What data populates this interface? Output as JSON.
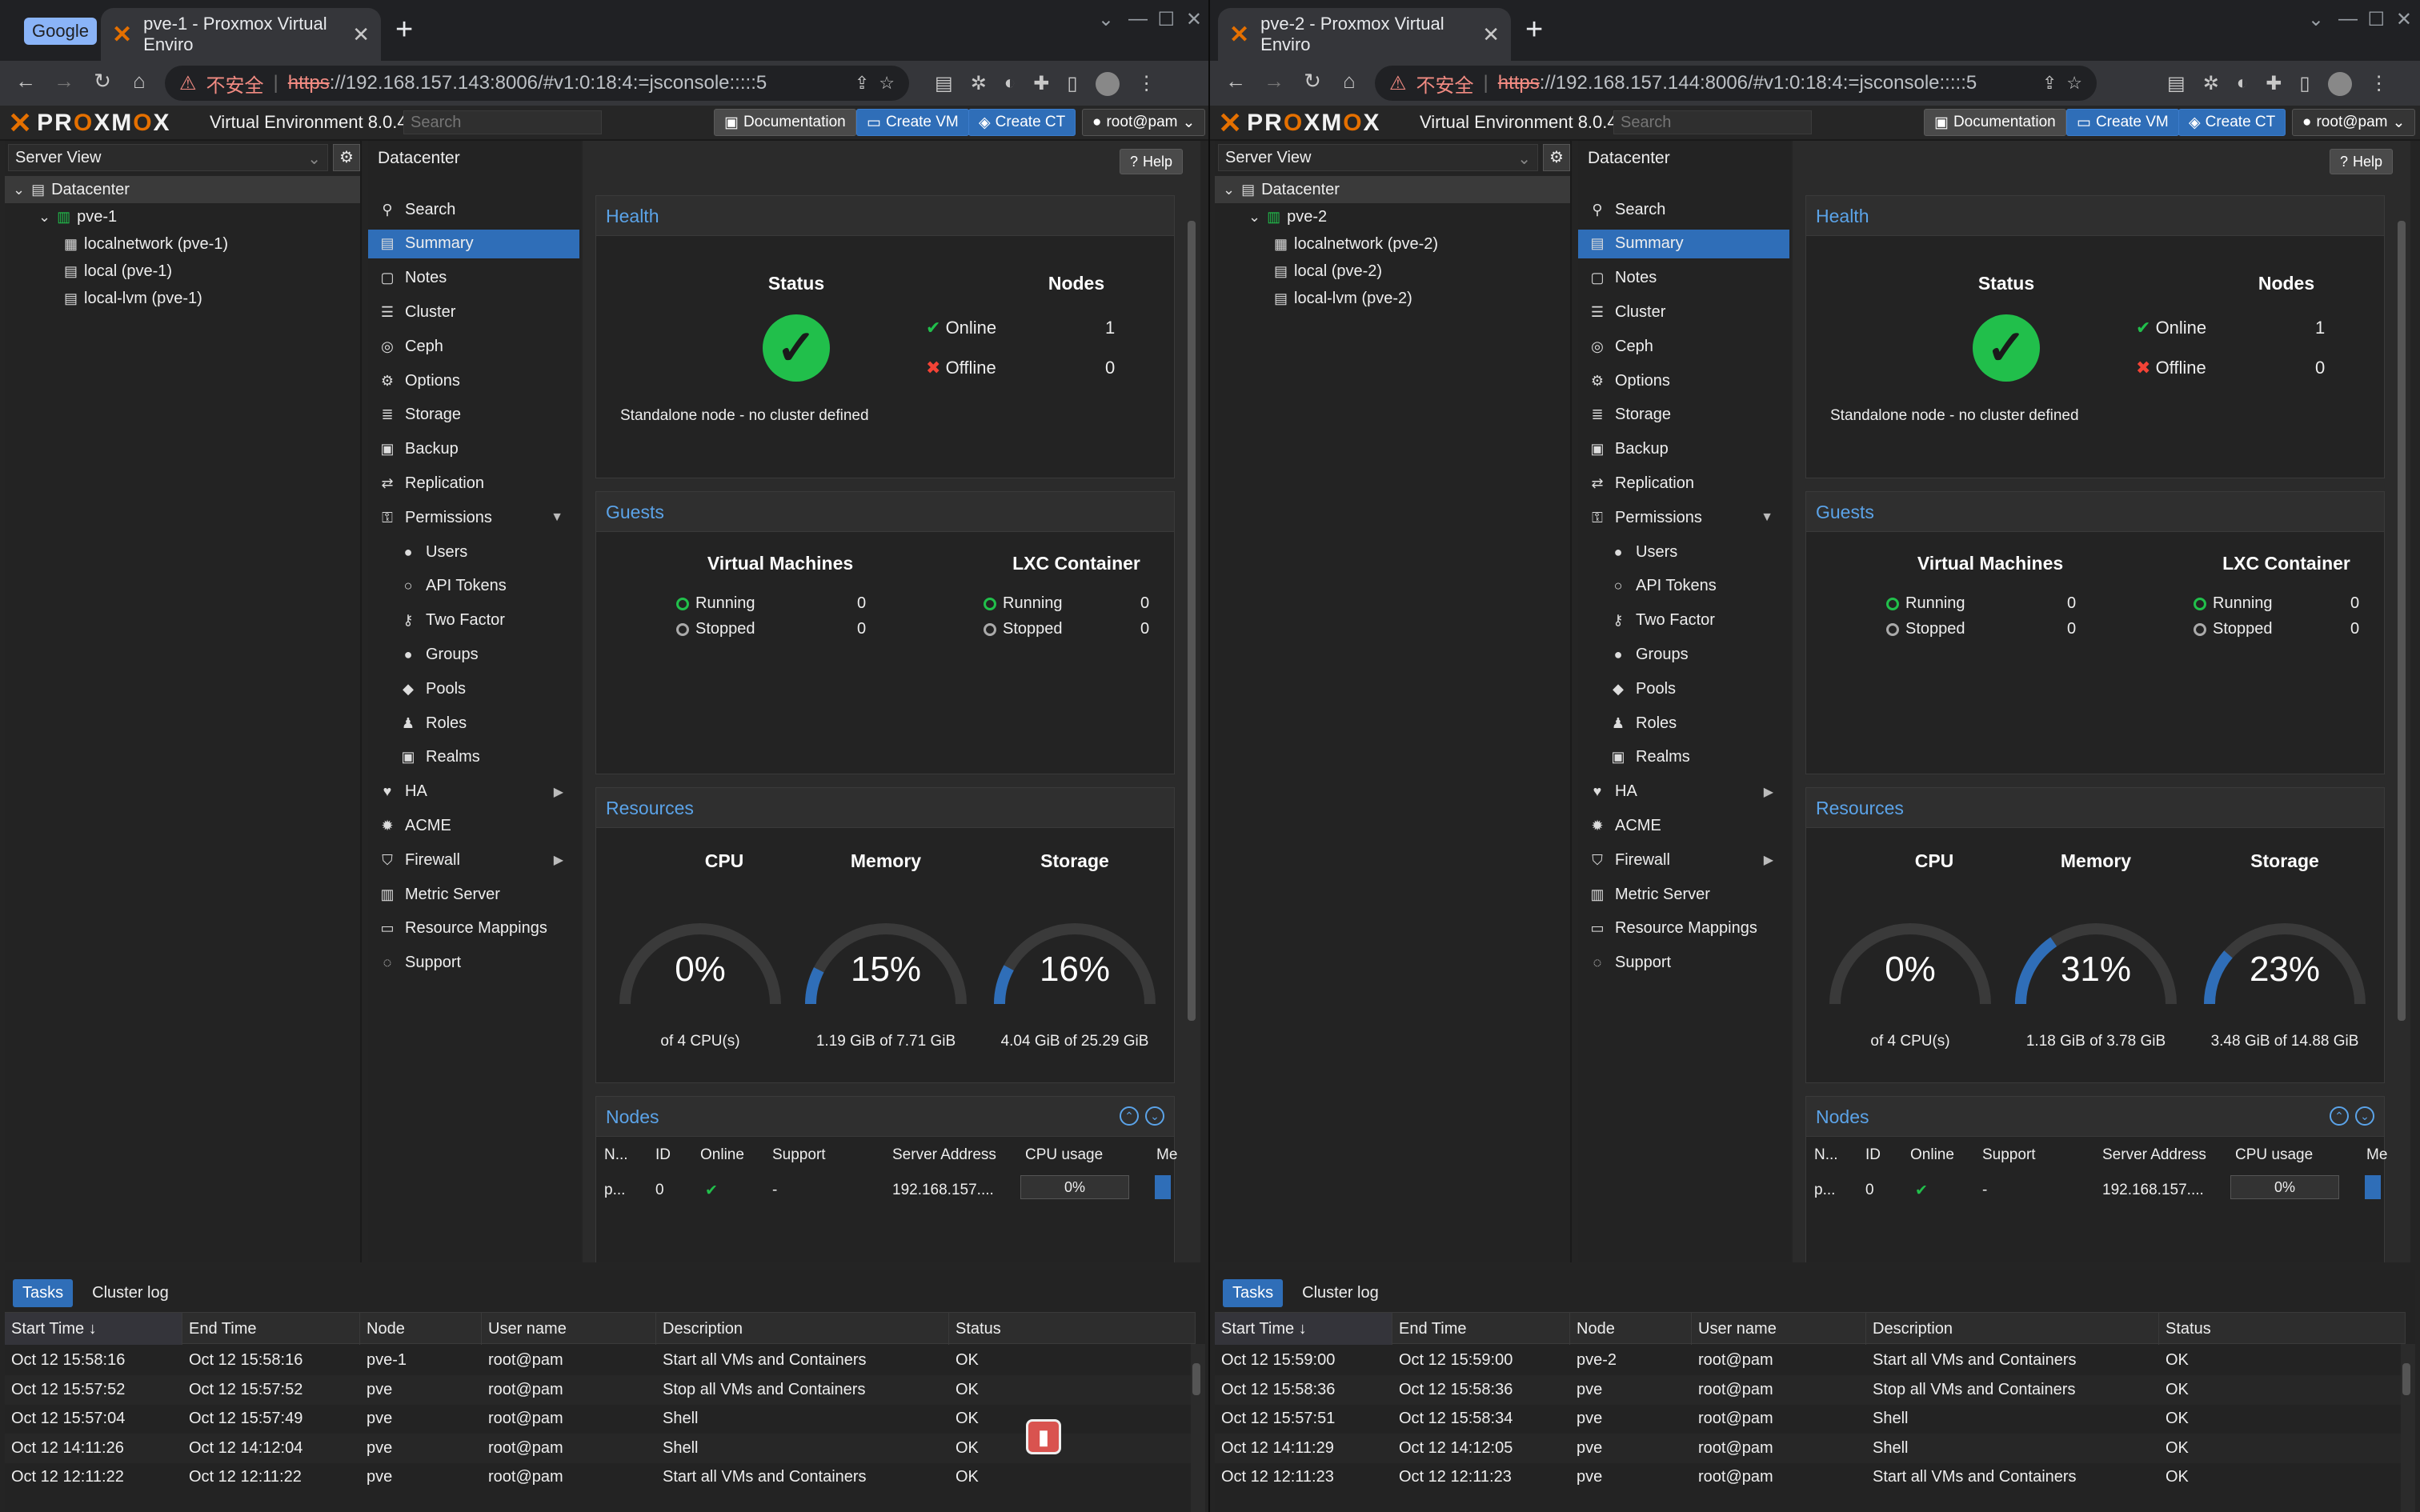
{
  "windows": [
    {
      "id": "w1",
      "tab_group": "Google",
      "tab_title": "pve-1 - Proxmox Virtual Enviro",
      "url_insecure": "不安全",
      "url_scheme": "https",
      "url_rest": "://192.168.157.143:8006/#v1:0:18:4:=jsconsole:::::5",
      "version": "Virtual Environment 8.0.4",
      "search_placeholder": "Search",
      "btn_docs": "Documentation",
      "btn_create_vm": "Create VM",
      "btn_create_ct": "Create CT",
      "btn_user": "root@pam",
      "view": "Server View",
      "tree": [
        {
          "label": "Datacenter",
          "indent": 0,
          "icon": "datacenter-icon",
          "sel": true
        },
        {
          "label": "pve-1",
          "indent": 1,
          "icon": "node-icon"
        },
        {
          "label": "localnetwork (pve-1)",
          "indent": 2,
          "icon": "grid-icon"
        },
        {
          "label": "local (pve-1)",
          "indent": 2,
          "icon": "storage-icon"
        },
        {
          "label": "local-lvm (pve-1)",
          "indent": 2,
          "icon": "storage-icon"
        }
      ],
      "health": {
        "status": "Status",
        "nodes": "Nodes",
        "online": "Online",
        "online_n": "1",
        "offline": "Offline",
        "offline_n": "0",
        "standalone": "Standalone node - no cluster defined"
      },
      "guests": {
        "vm": "Virtual Machines",
        "lxc": "LXC Container",
        "running": "Running",
        "stopped": "Stopped",
        "vm_running": "0",
        "vm_stopped": "0",
        "ct_running": "0",
        "ct_stopped": "0"
      },
      "resources": {
        "cpu": {
          "label": "CPU",
          "pct": "0%",
          "value": 0,
          "sub": "of 4 CPU(s)"
        },
        "mem": {
          "label": "Memory",
          "pct": "15%",
          "value": 15,
          "sub": "1.19 GiB of 7.71 GiB"
        },
        "sto": {
          "label": "Storage",
          "pct": "16%",
          "value": 16,
          "sub": "4.04 GiB of 25.29 GiB"
        }
      },
      "nodes_row": {
        "name": "p...",
        "id": "0",
        "support": "-",
        "addr": "192.168.157....",
        "cpu": "0%"
      },
      "tasks": [
        {
          "start": "Oct 12 15:58:16",
          "end": "Oct 12 15:58:16",
          "node": "pve-1",
          "user": "root@pam",
          "desc": "Start all VMs and Containers",
          "status": "OK"
        },
        {
          "start": "Oct 12 15:57:52",
          "end": "Oct 12 15:57:52",
          "node": "pve",
          "user": "root@pam",
          "desc": "Stop all VMs and Containers",
          "status": "OK"
        },
        {
          "start": "Oct 12 15:57:04",
          "end": "Oct 12 15:57:49",
          "node": "pve",
          "user": "root@pam",
          "desc": "Shell",
          "status": "OK"
        },
        {
          "start": "Oct 12 14:11:26",
          "end": "Oct 12 14:12:04",
          "node": "pve",
          "user": "root@pam",
          "desc": "Shell",
          "status": "OK"
        },
        {
          "start": "Oct 12 12:11:22",
          "end": "Oct 12 12:11:22",
          "node": "pve",
          "user": "root@pam",
          "desc": "Start all VMs and Containers",
          "status": "OK"
        }
      ]
    },
    {
      "id": "w2",
      "tab_group": "",
      "tab_title": "pve-2 - Proxmox Virtual Enviro",
      "url_insecure": "不安全",
      "url_scheme": "https",
      "url_rest": "://192.168.157.144:8006/#v1:0:18:4:=jsconsole:::::5",
      "version": "Virtual Environment 8.0.4",
      "search_placeholder": "Search",
      "btn_docs": "Documentation",
      "btn_create_vm": "Create VM",
      "btn_create_ct": "Create CT",
      "btn_user": "root@pam",
      "view": "Server View",
      "tree": [
        {
          "label": "Datacenter",
          "indent": 0,
          "icon": "datacenter-icon",
          "sel": true
        },
        {
          "label": "pve-2",
          "indent": 1,
          "icon": "node-icon"
        },
        {
          "label": "localnetwork (pve-2)",
          "indent": 2,
          "icon": "grid-icon"
        },
        {
          "label": "local (pve-2)",
          "indent": 2,
          "icon": "storage-icon"
        },
        {
          "label": "local-lvm (pve-2)",
          "indent": 2,
          "icon": "storage-icon"
        }
      ],
      "health": {
        "status": "Status",
        "nodes": "Nodes",
        "online": "Online",
        "online_n": "1",
        "offline": "Offline",
        "offline_n": "0",
        "standalone": "Standalone node - no cluster defined"
      },
      "guests": {
        "vm": "Virtual Machines",
        "lxc": "LXC Container",
        "running": "Running",
        "stopped": "Stopped",
        "vm_running": "0",
        "vm_stopped": "0",
        "ct_running": "0",
        "ct_stopped": "0"
      },
      "resources": {
        "cpu": {
          "label": "CPU",
          "pct": "0%",
          "value": 0,
          "sub": "of 4 CPU(s)"
        },
        "mem": {
          "label": "Memory",
          "pct": "31%",
          "value": 31,
          "sub": "1.18 GiB of 3.78 GiB"
        },
        "sto": {
          "label": "Storage",
          "pct": "23%",
          "value": 23,
          "sub": "3.48 GiB of 14.88 GiB"
        }
      },
      "nodes_row": {
        "name": "p...",
        "id": "0",
        "support": "-",
        "addr": "192.168.157....",
        "cpu": "0%"
      },
      "tasks": [
        {
          "start": "Oct 12 15:59:00",
          "end": "Oct 12 15:59:00",
          "node": "pve-2",
          "user": "root@pam",
          "desc": "Start all VMs and Containers",
          "status": "OK"
        },
        {
          "start": "Oct 12 15:58:36",
          "end": "Oct 12 15:58:36",
          "node": "pve",
          "user": "root@pam",
          "desc": "Stop all VMs and Containers",
          "status": "OK"
        },
        {
          "start": "Oct 12 15:57:51",
          "end": "Oct 12 15:58:34",
          "node": "pve",
          "user": "root@pam",
          "desc": "Shell",
          "status": "OK"
        },
        {
          "start": "Oct 12 14:11:29",
          "end": "Oct 12 14:12:05",
          "node": "pve",
          "user": "root@pam",
          "desc": "Shell",
          "status": "OK"
        },
        {
          "start": "Oct 12 12:11:23",
          "end": "Oct 12 12:11:23",
          "node": "pve",
          "user": "root@pam",
          "desc": "Start all VMs and Containers",
          "status": "OK"
        }
      ]
    }
  ],
  "menu": [
    {
      "label": "Search",
      "icon": "search-icon",
      "glyph": "⚲"
    },
    {
      "label": "Summary",
      "icon": "book-icon",
      "glyph": "▤",
      "active": true
    },
    {
      "label": "Notes",
      "icon": "notes-icon",
      "glyph": "▢"
    },
    {
      "label": "Cluster",
      "icon": "server-icon",
      "glyph": "☰"
    },
    {
      "label": "Ceph",
      "icon": "ceph-icon",
      "glyph": "◎"
    },
    {
      "label": "Options",
      "icon": "gear-icon",
      "glyph": "⚙"
    },
    {
      "label": "Storage",
      "icon": "database-icon",
      "glyph": "≣"
    },
    {
      "label": "Backup",
      "icon": "floppy-icon",
      "glyph": "▣"
    },
    {
      "label": "Replication",
      "icon": "retweet-icon",
      "glyph": "⇄"
    },
    {
      "label": "Permissions",
      "icon": "unlock-icon",
      "glyph": "⚿",
      "expand": "down"
    },
    {
      "label": "Users",
      "icon": "user-icon",
      "glyph": "●",
      "sub": true
    },
    {
      "label": "API Tokens",
      "icon": "user-outline-icon",
      "glyph": "○",
      "sub": true
    },
    {
      "label": "Two Factor",
      "icon": "key-icon",
      "glyph": "⚷",
      "sub": true
    },
    {
      "label": "Groups",
      "icon": "users-icon",
      "glyph": "●",
      "sub": true
    },
    {
      "label": "Pools",
      "icon": "tags-icon",
      "glyph": "◆",
      "sub": true
    },
    {
      "label": "Roles",
      "icon": "male-icon",
      "glyph": "♟",
      "sub": true
    },
    {
      "label": "Realms",
      "icon": "address-book-icon",
      "glyph": "▣",
      "sub": true
    },
    {
      "label": "HA",
      "icon": "heartbeat-icon",
      "glyph": "♥",
      "expand": "right"
    },
    {
      "label": "ACME",
      "icon": "certificate-icon",
      "glyph": "✹"
    },
    {
      "label": "Firewall",
      "icon": "shield-icon",
      "glyph": "⛉",
      "expand": "right"
    },
    {
      "label": "Metric Server",
      "icon": "bar-chart-icon",
      "glyph": "▥"
    },
    {
      "label": "Resource Mappings",
      "icon": "folder-icon",
      "glyph": "▭"
    },
    {
      "label": "Support",
      "icon": "support-icon",
      "glyph": "◌"
    }
  ],
  "labels": {
    "datacenter": "Datacenter",
    "help": "Help",
    "health": "Health",
    "guests": "Guests",
    "resources": "Resources",
    "nodes": "Nodes",
    "tasks_tab": "Tasks",
    "cluster_log_tab": "Cluster log",
    "node_cols": [
      "N...",
      "ID",
      "Online",
      "Support",
      "Server Address",
      "CPU usage",
      "Me"
    ],
    "task_cols": [
      "Start Time ↓",
      "End Time",
      "Node",
      "User name",
      "Description",
      "Status"
    ]
  },
  "colors": {
    "accent": "#2f6eb8",
    "title_blue": "#5ba3e8",
    "ok_green": "#21bf4b",
    "error_red": "#f44336",
    "brand_orange": "#e57000"
  }
}
